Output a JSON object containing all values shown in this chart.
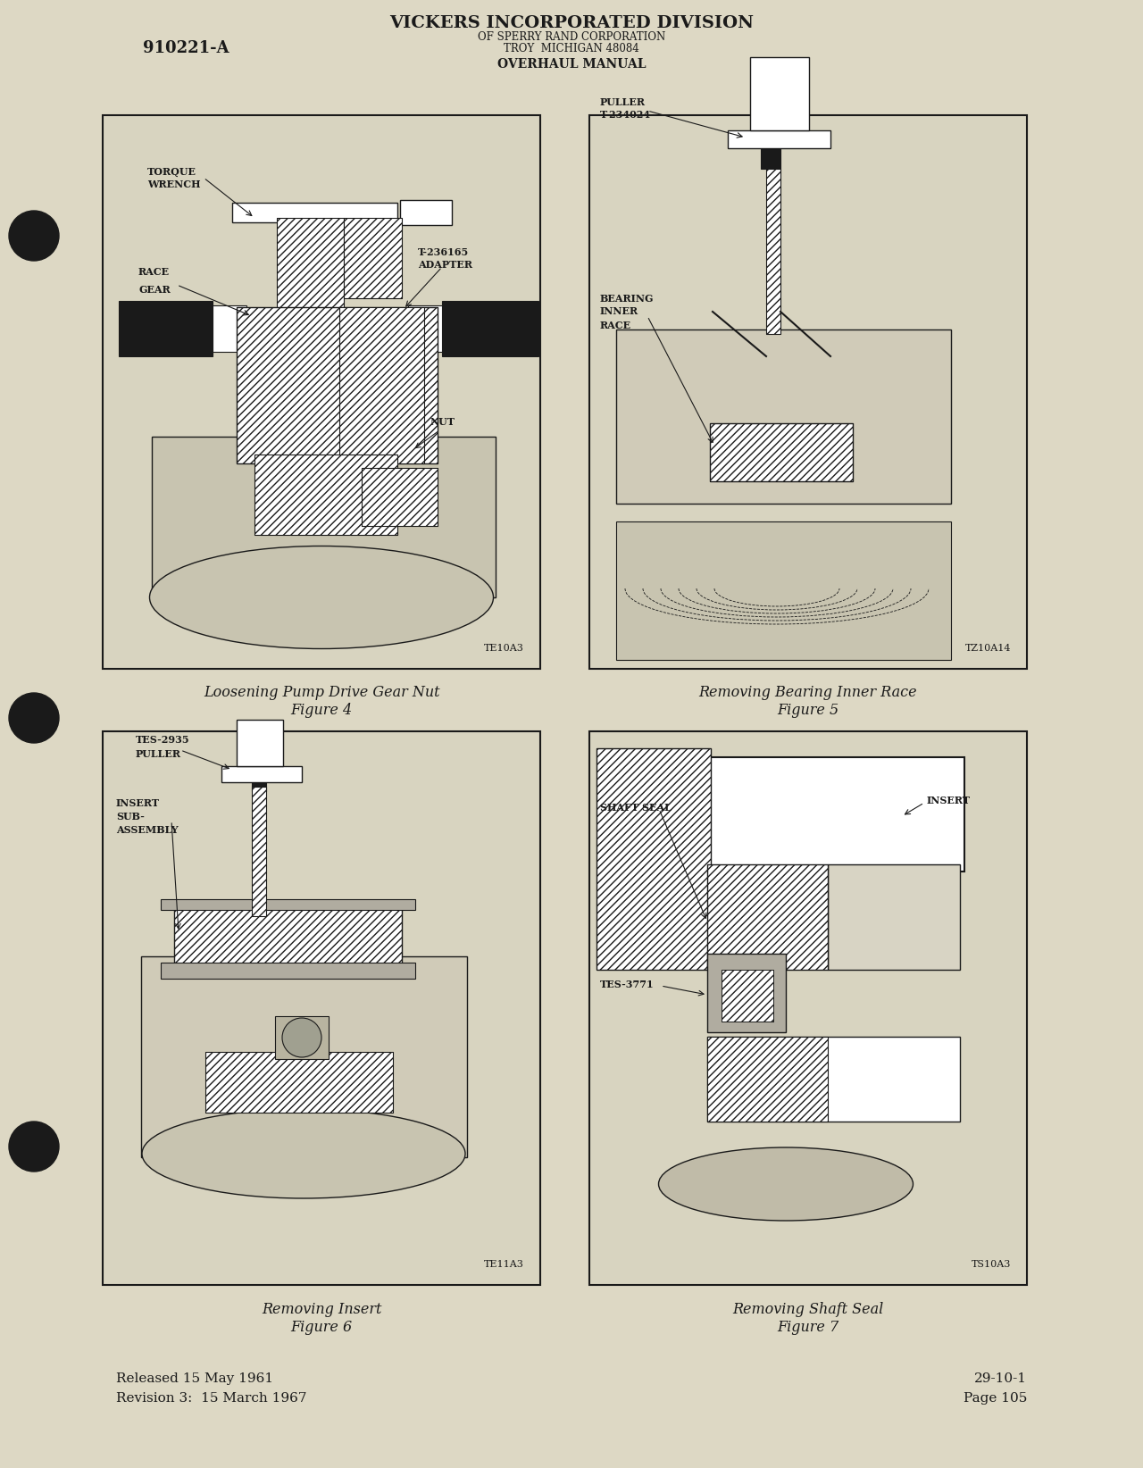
{
  "page_background": "#ddd8c4",
  "text_color": "#1a1a1a",
  "header_left": "910221-A",
  "header_center_line1": "VICKERS INCORPORATED DIVISION",
  "header_center_line2": "OF SPERRY RAND CORPORATION",
  "header_center_line3": "TROY  MICHIGAN 48084",
  "header_center_line4": "OVERHAUL MANUAL",
  "fig4_caption_line1": "Loosening Pump Drive Gear Nut",
  "fig4_caption_line2": "Figure 4",
  "fig5_caption_line1": "Removing Bearing Inner Race",
  "fig5_caption_line2": "Figure 5",
  "fig6_caption_line1": "Removing Insert",
  "fig6_caption_line2": "Figure 6",
  "fig7_caption_line1": "Removing Shaft Seal",
  "fig7_caption_line2": "Figure 7",
  "footer_left_line1": "Released 15 May 1961",
  "footer_left_line2": "Revision 3:  15 March 1967",
  "footer_right_line1": "29-10-1",
  "footer_right_line2": "Page 105",
  "fig4_ref": "TE10A3",
  "fig5_ref": "TZ10A14",
  "fig6_ref": "TE11A3",
  "fig7_ref": "TS10A3",
  "box_fc": "#d8d4c0",
  "hatch_fc": "white",
  "line_color": "#1a1a1a"
}
